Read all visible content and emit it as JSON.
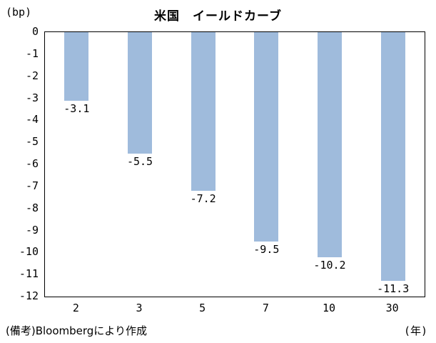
{
  "title": "米国　イールドカーブ",
  "footnote": "(備考)Bloombergにより作成",
  "colors": {
    "bar": "#9fbbdc",
    "axis": "#000000",
    "text": "#000000"
  },
  "chart_data": {
    "type": "bar",
    "title": "米国　イールドカーブ",
    "ylabel": "(bp)",
    "xlabel": "(年)",
    "categories": [
      "2",
      "3",
      "5",
      "7",
      "10",
      "30"
    ],
    "values": [
      -3.1,
      -5.5,
      -7.2,
      -9.5,
      -10.2,
      -11.3
    ],
    "data_labels": [
      "-3.1",
      "-5.5",
      "-7.2",
      "-9.5",
      "-10.2",
      "-11.3"
    ],
    "ylim": [
      -12,
      0
    ],
    "y_ticks": [
      0,
      -1,
      -2,
      -3,
      -4,
      -5,
      -6,
      -7,
      -8,
      -9,
      -10,
      -11,
      -12
    ],
    "grid": false,
    "legend": "none"
  }
}
